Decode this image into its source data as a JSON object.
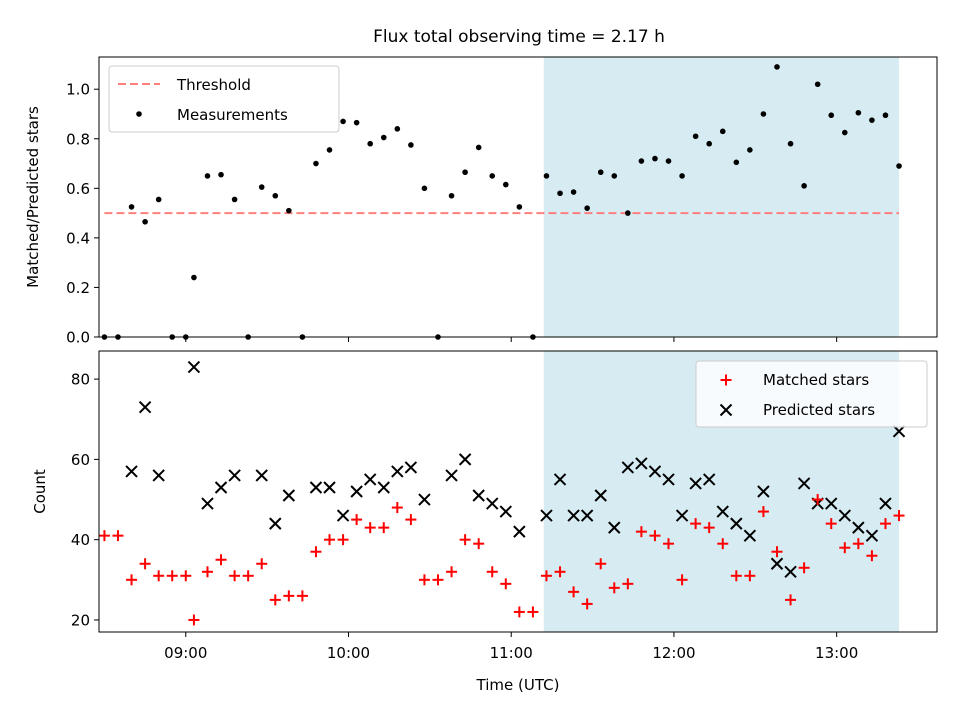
{
  "title": "Flux total observing time = 2.17 h",
  "colors": {
    "threshold": "#ff7f7f",
    "measurement": "#000000",
    "matched": "#ff0000",
    "predicted": "#000000",
    "span": "#add8e6"
  },
  "chart_data": [
    {
      "type": "scatter",
      "ylabel": "Matched/Predicted stars",
      "ylim": [
        0,
        1.13
      ],
      "yticks": [
        0.0,
        0.2,
        0.4,
        0.6,
        0.8,
        1.0
      ],
      "ytick_labels": [
        "0.0",
        "0.2",
        "0.4",
        "0.6",
        "0.8",
        "1.0"
      ],
      "xlim": [
        "08:28",
        "13:37"
      ],
      "highlight_span": [
        "11:12",
        "13:23"
      ],
      "threshold": {
        "value": 0.5,
        "start": "08:30",
        "end": "13:23"
      },
      "legend": {
        "position": "top-left",
        "threshold_label": "Threshold",
        "measurements_label": "Measurements"
      },
      "measurements": [
        [
          "08:30",
          0.0
        ],
        [
          "08:35",
          0.0
        ],
        [
          "08:40",
          0.525
        ],
        [
          "08:45",
          0.465
        ],
        [
          "08:50",
          0.555
        ],
        [
          "08:55",
          0.0
        ],
        [
          "09:00",
          0.0
        ],
        [
          "09:03",
          0.24
        ],
        [
          "09:08",
          0.65
        ],
        [
          "09:13",
          0.655
        ],
        [
          "09:18",
          0.555
        ],
        [
          "09:23",
          0.0
        ],
        [
          "09:28",
          0.605
        ],
        [
          "09:33",
          0.57
        ],
        [
          "09:38",
          0.51
        ],
        [
          "09:43",
          0.0
        ],
        [
          "09:48",
          0.7
        ],
        [
          "09:53",
          0.755
        ],
        [
          "09:58",
          0.87
        ],
        [
          "10:03",
          0.865
        ],
        [
          "10:08",
          0.78
        ],
        [
          "10:13",
          0.805
        ],
        [
          "10:18",
          0.84
        ],
        [
          "10:23",
          0.775
        ],
        [
          "10:28",
          0.6
        ],
        [
          "10:33",
          0.0
        ],
        [
          "10:38",
          0.57
        ],
        [
          "10:43",
          0.665
        ],
        [
          "10:48",
          0.765
        ],
        [
          "10:53",
          0.65
        ],
        [
          "10:58",
          0.615
        ],
        [
          "11:03",
          0.525
        ],
        [
          "11:08",
          0.0
        ],
        [
          "11:13",
          0.65
        ],
        [
          "11:18",
          0.58
        ],
        [
          "11:23",
          0.585
        ],
        [
          "11:28",
          0.52
        ],
        [
          "11:33",
          0.665
        ],
        [
          "11:38",
          0.65
        ],
        [
          "11:43",
          0.5
        ],
        [
          "11:48",
          0.71
        ],
        [
          "11:53",
          0.72
        ],
        [
          "11:58",
          0.71
        ],
        [
          "12:03",
          0.65
        ],
        [
          "12:08",
          0.81
        ],
        [
          "12:13",
          0.78
        ],
        [
          "12:18",
          0.83
        ],
        [
          "12:23",
          0.705
        ],
        [
          "12:28",
          0.755
        ],
        [
          "12:33",
          0.9
        ],
        [
          "12:38",
          1.09
        ],
        [
          "12:43",
          0.78
        ],
        [
          "12:48",
          0.61
        ],
        [
          "12:53",
          1.02
        ],
        [
          "12:58",
          0.895
        ],
        [
          "13:03",
          0.825
        ],
        [
          "13:08",
          0.905
        ],
        [
          "13:13",
          0.875
        ],
        [
          "13:18",
          0.895
        ],
        [
          "13:23",
          0.69
        ]
      ]
    },
    {
      "type": "scatter",
      "xlabel": "Time (UTC)",
      "ylabel": "Count",
      "ylim": [
        17,
        87
      ],
      "yticks": [
        20,
        40,
        60,
        80
      ],
      "ytick_labels": [
        "20",
        "40",
        "60",
        "80"
      ],
      "xlim": [
        "08:28",
        "13:37"
      ],
      "xticks": [
        "09:00",
        "10:00",
        "11:00",
        "12:00",
        "13:00"
      ],
      "xtick_labels": [
        "09:00",
        "10:00",
        "11:00",
        "12:00",
        "13:00"
      ],
      "highlight_span": [
        "11:12",
        "13:23"
      ],
      "legend": {
        "position": "top-right",
        "matched_label": "Matched stars",
        "predicted_label": "Predicted stars"
      },
      "matched": [
        [
          "08:30",
          41
        ],
        [
          "08:35",
          41
        ],
        [
          "08:40",
          30
        ],
        [
          "08:45",
          34
        ],
        [
          "08:50",
          31
        ],
        [
          "08:55",
          31
        ],
        [
          "09:00",
          31
        ],
        [
          "09:03",
          20
        ],
        [
          "09:08",
          32
        ],
        [
          "09:13",
          35
        ],
        [
          "09:18",
          31
        ],
        [
          "09:23",
          31
        ],
        [
          "09:28",
          34
        ],
        [
          "09:33",
          25
        ],
        [
          "09:38",
          26
        ],
        [
          "09:43",
          26
        ],
        [
          "09:48",
          37
        ],
        [
          "09:53",
          40
        ],
        [
          "09:58",
          40
        ],
        [
          "10:03",
          45
        ],
        [
          "10:08",
          43
        ],
        [
          "10:13",
          43
        ],
        [
          "10:18",
          48
        ],
        [
          "10:23",
          45
        ],
        [
          "10:28",
          30
        ],
        [
          "10:33",
          30
        ],
        [
          "10:38",
          32
        ],
        [
          "10:43",
          40
        ],
        [
          "10:48",
          39
        ],
        [
          "10:53",
          32
        ],
        [
          "10:58",
          29
        ],
        [
          "11:03",
          22
        ],
        [
          "11:08",
          22
        ],
        [
          "11:13",
          31
        ],
        [
          "11:18",
          32
        ],
        [
          "11:23",
          27
        ],
        [
          "11:28",
          24
        ],
        [
          "11:33",
          34
        ],
        [
          "11:38",
          28
        ],
        [
          "11:43",
          29
        ],
        [
          "11:48",
          42
        ],
        [
          "11:53",
          41
        ],
        [
          "11:58",
          39
        ],
        [
          "12:03",
          30
        ],
        [
          "12:08",
          44
        ],
        [
          "12:13",
          43
        ],
        [
          "12:18",
          39
        ],
        [
          "12:23",
          31
        ],
        [
          "12:28",
          31
        ],
        [
          "12:33",
          47
        ],
        [
          "12:38",
          37
        ],
        [
          "12:43",
          25
        ],
        [
          "12:48",
          33
        ],
        [
          "12:53",
          50
        ],
        [
          "12:58",
          44
        ],
        [
          "13:03",
          38
        ],
        [
          "13:08",
          39
        ],
        [
          "13:13",
          36
        ],
        [
          "13:18",
          44
        ],
        [
          "13:23",
          46
        ]
      ],
      "predicted": [
        [
          "08:40",
          57
        ],
        [
          "08:45",
          73
        ],
        [
          "08:50",
          56
        ],
        [
          "09:03",
          83
        ],
        [
          "09:08",
          49
        ],
        [
          "09:13",
          53
        ],
        [
          "09:18",
          56
        ],
        [
          "09:28",
          56
        ],
        [
          "09:33",
          44
        ],
        [
          "09:38",
          51
        ],
        [
          "09:48",
          53
        ],
        [
          "09:53",
          53
        ],
        [
          "09:58",
          46
        ],
        [
          "10:03",
          52
        ],
        [
          "10:08",
          55
        ],
        [
          "10:13",
          53
        ],
        [
          "10:18",
          57
        ],
        [
          "10:23",
          58
        ],
        [
          "10:28",
          50
        ],
        [
          "10:38",
          56
        ],
        [
          "10:43",
          60
        ],
        [
          "10:48",
          51
        ],
        [
          "10:53",
          49
        ],
        [
          "10:58",
          47
        ],
        [
          "11:03",
          42
        ],
        [
          "11:13",
          46
        ],
        [
          "11:18",
          55
        ],
        [
          "11:23",
          46
        ],
        [
          "11:28",
          46
        ],
        [
          "11:33",
          51
        ],
        [
          "11:38",
          43
        ],
        [
          "11:43",
          58
        ],
        [
          "11:48",
          59
        ],
        [
          "11:53",
          57
        ],
        [
          "11:58",
          55
        ],
        [
          "12:03",
          46
        ],
        [
          "12:08",
          54
        ],
        [
          "12:13",
          55
        ],
        [
          "12:18",
          47
        ],
        [
          "12:23",
          44
        ],
        [
          "12:28",
          41
        ],
        [
          "12:33",
          52
        ],
        [
          "12:38",
          34
        ],
        [
          "12:43",
          32
        ],
        [
          "12:48",
          54
        ],
        [
          "12:53",
          49
        ],
        [
          "12:58",
          49
        ],
        [
          "13:03",
          46
        ],
        [
          "13:08",
          43
        ],
        [
          "13:13",
          41
        ],
        [
          "13:18",
          49
        ],
        [
          "13:23",
          67
        ]
      ]
    }
  ]
}
